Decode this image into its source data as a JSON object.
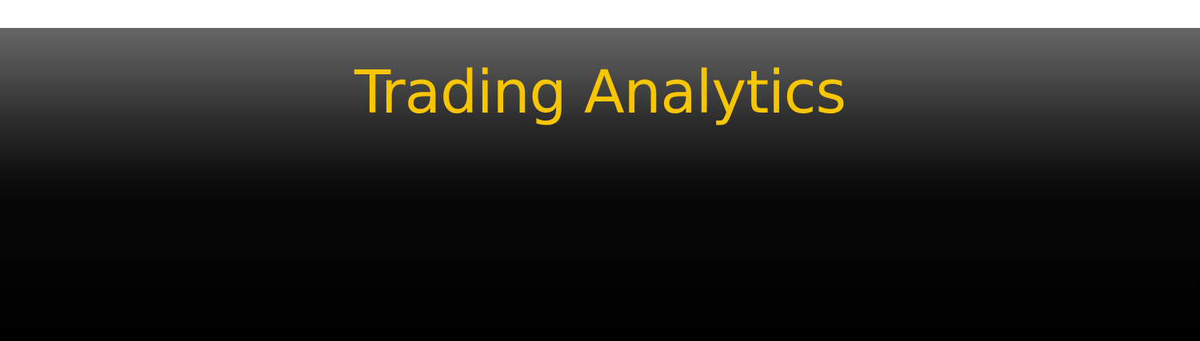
{
  "header": {
    "title": "Trading Analytics"
  },
  "colors": {
    "title": "#f7c600",
    "banner_top": "#676767",
    "banner_bottom": "#000000",
    "page_background": "#ffffff"
  }
}
